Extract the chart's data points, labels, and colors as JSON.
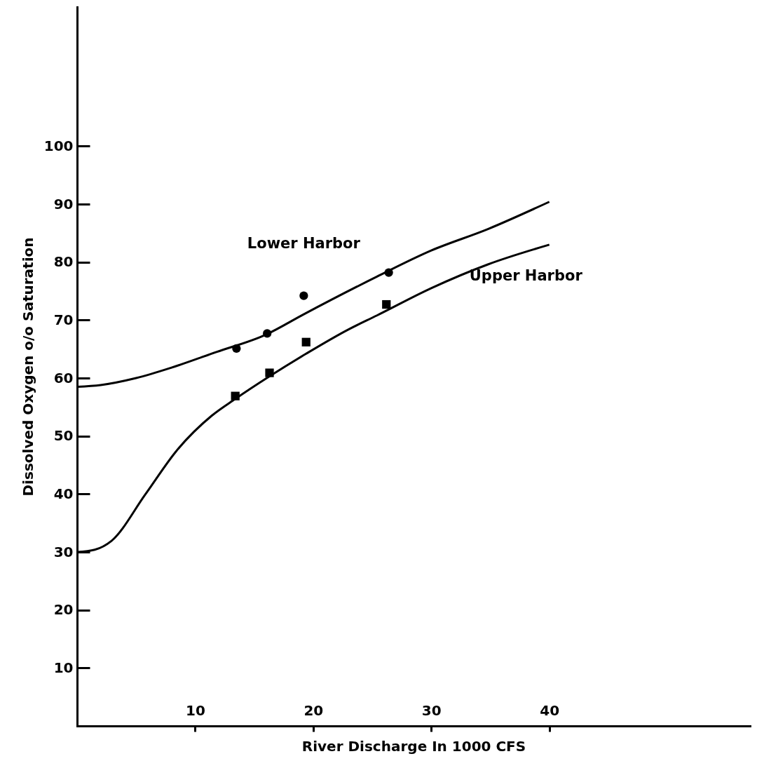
{
  "chart_data": {
    "type": "line",
    "xlabel": "River Discharge In 1000 CFS",
    "ylabel": "Dissolved Oxygen o/o Saturation",
    "xlim": [
      0,
      57
    ],
    "ylim": [
      0,
      124
    ],
    "xticks": [
      10,
      20,
      30,
      40
    ],
    "yticks": [
      10,
      20,
      30,
      40,
      50,
      60,
      70,
      80,
      90,
      100
    ],
    "grid": false,
    "legend": false,
    "series": [
      {
        "name": "Lower Harbor",
        "color": "#000000",
        "marker": "none",
        "line_style": "solid",
        "x": [
          0,
          2,
          5,
          8,
          11.8,
          16,
          19.2,
          25.4,
          30,
          34.8,
          40
        ],
        "values": [
          58.5,
          58.8,
          60,
          61.8,
          64.5,
          67.5,
          71,
          77.5,
          82,
          85.7,
          90.4
        ]
      },
      {
        "name": "Upper Harbor",
        "color": "#000000",
        "marker": "none",
        "line_style": "solid",
        "x": [
          0,
          1.5,
          2.9,
          5.8,
          8.4,
          11.4,
          13.4,
          16.3,
          19.4,
          23,
          25.4,
          30,
          34.8,
          40
        ],
        "values": [
          30,
          30.4,
          31.9,
          40,
          47.4,
          53.5,
          56.4,
          60.3,
          64.2,
          68.4,
          70.8,
          75.5,
          79.6,
          83
        ]
      },
      {
        "type": "scatter",
        "color": "#000000",
        "marker": "circle",
        "x": [
          13.5,
          16.1,
          19.2,
          26.4
        ],
        "values": [
          65.1,
          67.7,
          74.2,
          78.2
        ]
      },
      {
        "type": "scatter",
        "color": "#000000",
        "marker": "square",
        "x": [
          13.4,
          16.3,
          19.4,
          26.2
        ],
        "values": [
          56.9,
          60.9,
          66.2,
          72.7
        ]
      }
    ]
  }
}
